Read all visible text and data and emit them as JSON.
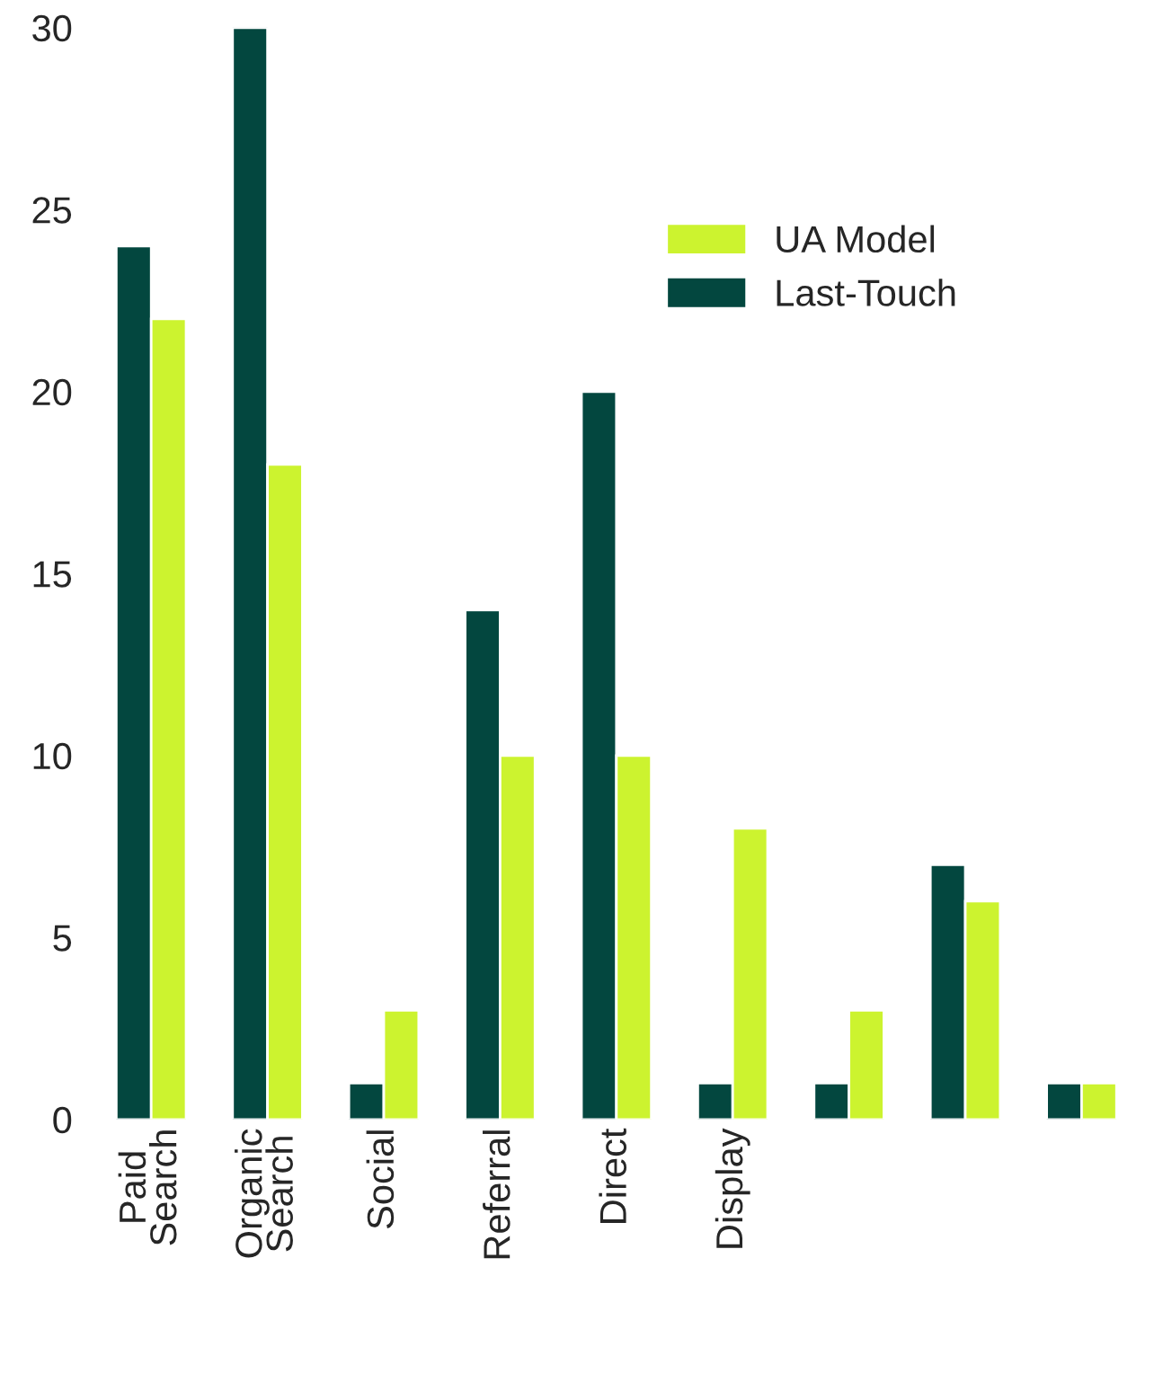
{
  "chart_data": {
    "type": "bar",
    "categories": [
      "Paid\nSearch",
      "Organic\nSearch",
      "Social",
      "Referral",
      "Direct",
      "Display",
      null,
      null,
      null
    ],
    "series": [
      {
        "name": "Last-Touch",
        "color": "#03473f",
        "values": [
          24,
          30,
          1,
          14,
          20,
          1,
          1,
          7,
          1
        ]
      },
      {
        "name": "UA Model",
        "color": "#ccf32f",
        "values": [
          22,
          18,
          3,
          10,
          10,
          8,
          3,
          6,
          1
        ]
      }
    ],
    "ylim": [
      0,
      30
    ],
    "yticks": [
      0,
      5,
      10,
      15,
      20,
      25,
      30
    ],
    "grid": false,
    "legend": "top right"
  }
}
